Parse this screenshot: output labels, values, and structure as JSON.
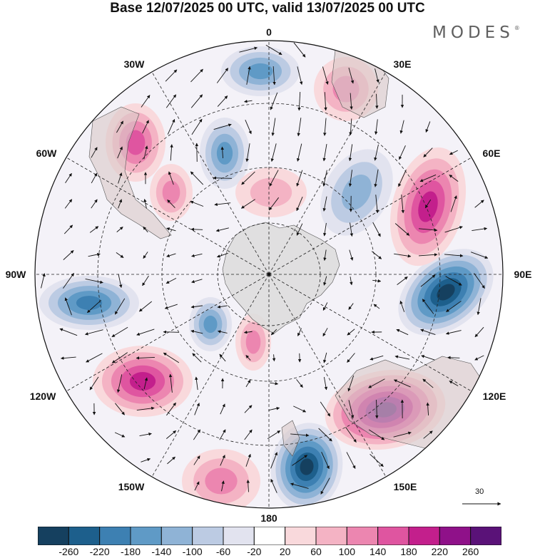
{
  "title": "Base 12/07/2025 00 UTC, valid 13/07/2025 00 UTC",
  "brand": "MODES",
  "brand_mark": "®",
  "longitude_labels": [
    "0",
    "30E",
    "60E",
    "90E",
    "120E",
    "150E",
    "180",
    "150W",
    "120W",
    "90W",
    "60W",
    "30W"
  ],
  "vector_scale": {
    "value": "30"
  },
  "colorbar": {
    "tick_labels": [
      "-260",
      "-220",
      "-180",
      "-140",
      "-100",
      "-60",
      "-20",
      "20",
      "60",
      "100",
      "140",
      "180",
      "220",
      "260"
    ],
    "colors": [
      "#15405f",
      "#1d5f8c",
      "#3d80b2",
      "#5f9ac6",
      "#8fb3d6",
      "#bccbe3",
      "#e2e3ef",
      "#ffffff",
      "#f9d9dc",
      "#f4b3c4",
      "#ec86b0",
      "#df55a0",
      "#c31f8c",
      "#8f1189",
      "#5a1278"
    ]
  },
  "chart_data": {
    "type": "heatmap",
    "projection": "south polar stereographic",
    "legend_placement": "bottom",
    "anomalies": [
      {
        "sign": "negative",
        "strength": -220,
        "near": "90E-105E"
      },
      {
        "sign": "negative",
        "strength": -200,
        "near": "160E-170E"
      },
      {
        "sign": "negative",
        "strength": -180,
        "near": "95W"
      },
      {
        "sign": "positive",
        "strength": 180,
        "near": "125E-130E"
      },
      {
        "sign": "positive",
        "strength": 140,
        "near": "65E"
      },
      {
        "sign": "positive",
        "strength": 140,
        "near": "115W"
      }
    ]
  }
}
